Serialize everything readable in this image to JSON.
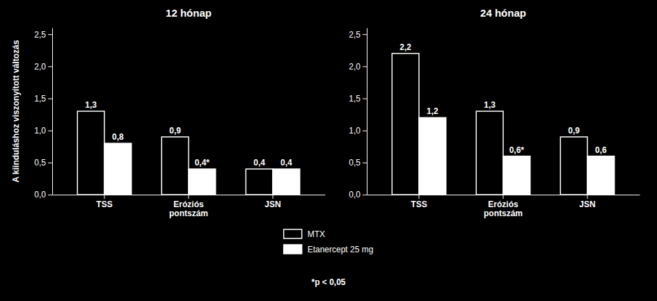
{
  "chart_data": [
    {
      "type": "bar",
      "title": "12 hónap",
      "categories": [
        "TSS",
        "Eróziós\npontszám",
        "JSN"
      ],
      "series": [
        {
          "name": "MTX",
          "color": "#000000",
          "values": [
            1.3,
            0.9,
            0.4
          ],
          "value_labels": [
            "1,3",
            "0,9",
            "0,4"
          ]
        },
        {
          "name": "Etanercept 25 mg",
          "color": "#ffffff",
          "values": [
            0.8,
            0.4,
            0.4
          ],
          "value_labels": [
            "0,8",
            "0,4*",
            "0,4"
          ]
        }
      ],
      "y_label": "A kiinduláshoz viszonyított változás",
      "ylim": [
        0,
        2.6
      ],
      "yticks": [
        {
          "value": 0.0,
          "label": "0,0"
        },
        {
          "value": 0.5,
          "label": "0,5"
        },
        {
          "value": 1.0,
          "label": "1,0"
        },
        {
          "value": 1.5,
          "label": "1,5"
        },
        {
          "value": 2.0,
          "label": "2,0"
        },
        {
          "value": 2.5,
          "label": "2,5"
        }
      ],
      "grid": false,
      "data_labels": true
    },
    {
      "type": "bar",
      "title": "24 hónap",
      "categories": [
        "TSS",
        "Eróziós\npontszám",
        "JSN"
      ],
      "series": [
        {
          "name": "MTX",
          "color": "#000000",
          "values": [
            2.2,
            1.3,
            0.9
          ],
          "value_labels": [
            "2,2",
            "1,3",
            "0,9"
          ]
        },
        {
          "name": "Etanercept 25 mg",
          "color": "#ffffff",
          "values": [
            1.2,
            0.6,
            0.6
          ],
          "value_labels": [
            "1,2",
            "0,6*",
            "0,6"
          ]
        }
      ],
      "ylim": [
        0,
        2.6
      ],
      "yticks": [
        {
          "value": 0.0,
          "label": "0,0"
        },
        {
          "value": 0.5,
          "label": "0,5"
        },
        {
          "value": 1.0,
          "label": "1,0"
        },
        {
          "value": 1.5,
          "label": "1,5"
        },
        {
          "value": 2.0,
          "label": "2,0"
        },
        {
          "value": 2.5,
          "label": "2,5"
        }
      ],
      "grid": false,
      "data_labels": true
    }
  ],
  "annotations": [
    "*p < 0,05"
  ]
}
